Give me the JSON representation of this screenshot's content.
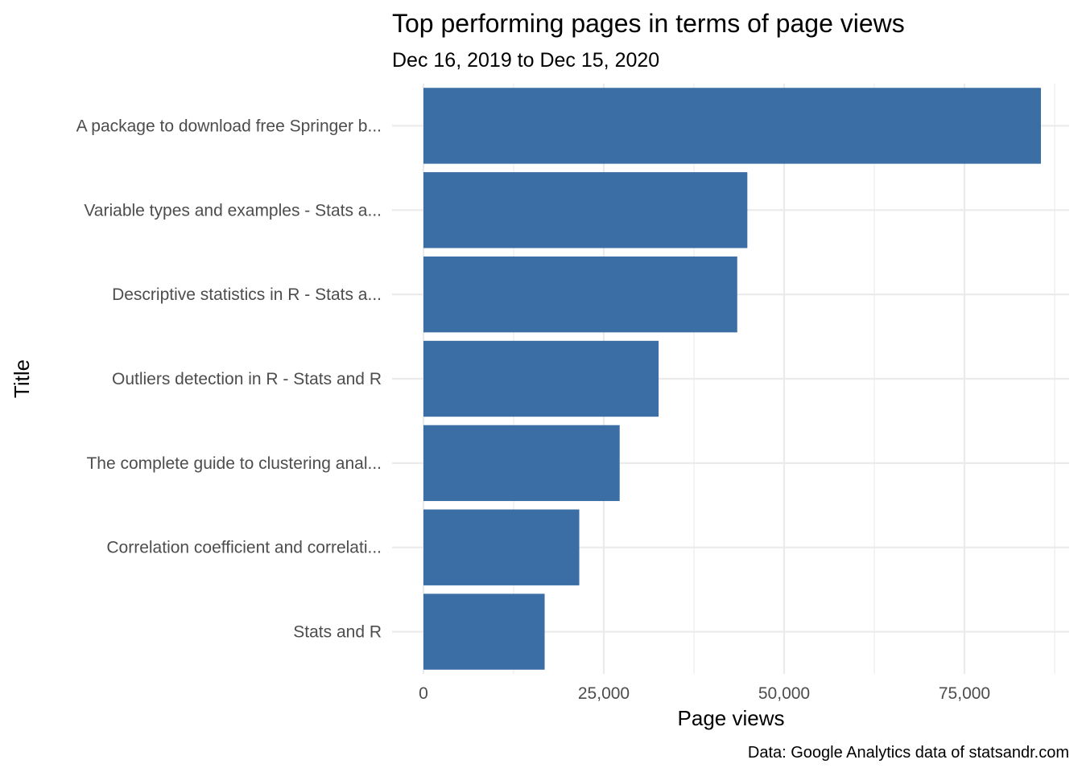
{
  "chart_data": {
    "type": "bar",
    "orientation": "horizontal",
    "title": "Top performing pages in terms of page views",
    "subtitle": "Dec 16, 2019 to Dec 15, 2020",
    "xlabel": "Page views",
    "ylabel": "Title",
    "caption": "Data: Google Analytics data of statsandr.com",
    "categories": [
      "A package to download free Springer b...",
      "Variable types and examples - Stats a...",
      "Descriptive statistics in R - Stats a...",
      "Outliers detection in R - Stats and R",
      "The complete guide to clustering anal...",
      "Correlation coefficient and correlati...",
      "Stats and R"
    ],
    "values": [
      85600,
      44900,
      43500,
      32600,
      27200,
      21600,
      16800
    ],
    "xlim": [
      -1000,
      90000
    ],
    "x_ticks": [
      0,
      25000,
      50000,
      75000
    ],
    "x_tick_labels": [
      "0",
      "25,000",
      "50,000",
      "75,000"
    ],
    "x_minor_ticks": [
      12500,
      37500,
      62500,
      87500
    ],
    "bar_color": "#3a6ea5",
    "grid": true,
    "legend": "none"
  }
}
